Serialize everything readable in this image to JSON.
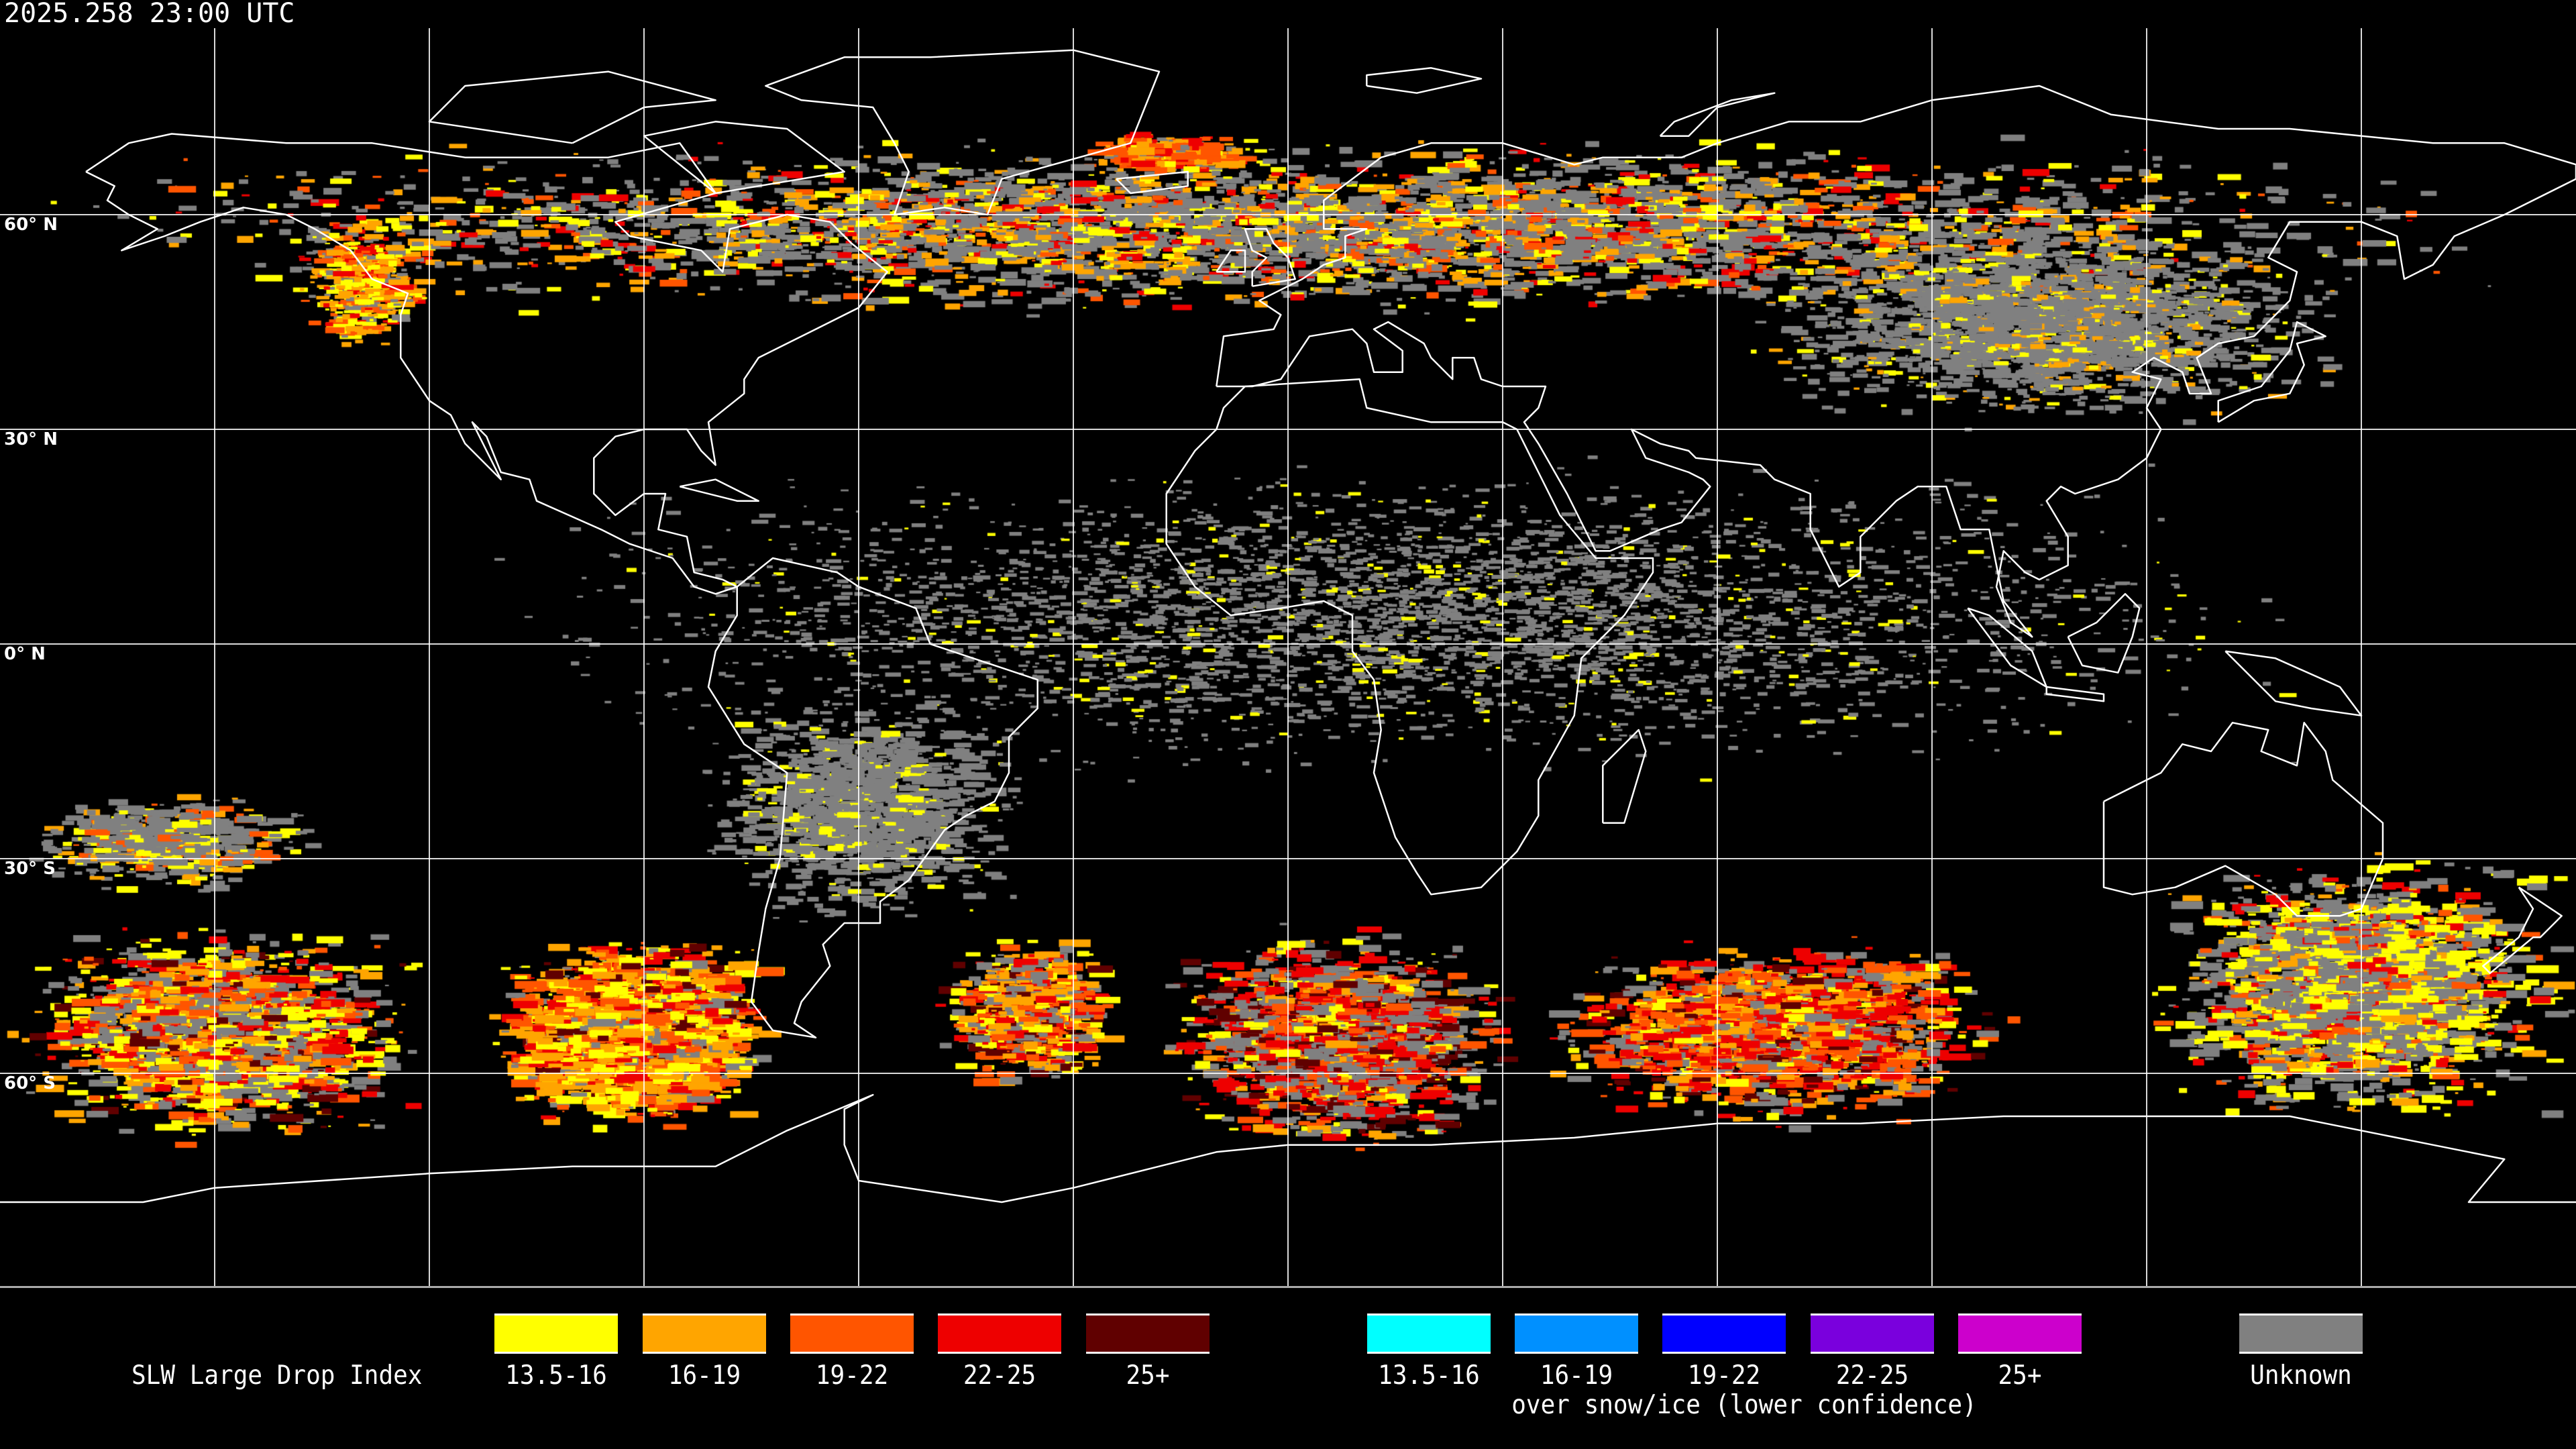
{
  "title": "2025.258 23:00 UTC",
  "latitude_labels": [
    "60° N",
    "30° N",
    "0° N",
    "30° S",
    "60° S"
  ],
  "legend": {
    "title": "SLW Large Drop Index",
    "standard": [
      {
        "label": "13.5-16",
        "color": "#ffff00"
      },
      {
        "label": "16-19",
        "color": "#ffa500"
      },
      {
        "label": "19-22",
        "color": "#ff5500"
      },
      {
        "label": "22-25",
        "color": "#ee0000"
      },
      {
        "label": "25+",
        "color": "#600000"
      }
    ],
    "snow_ice": [
      {
        "label": "13.5-16",
        "color": "#00ffff"
      },
      {
        "label": "16-19",
        "color": "#0090ff"
      },
      {
        "label": "19-22",
        "color": "#0000ff"
      },
      {
        "label": "22-25",
        "color": "#7a00dd"
      },
      {
        "label": "25+",
        "color": "#cc00cc"
      }
    ],
    "snow_ice_caption": "over snow/ice (lower confidence)",
    "unknown": {
      "label": "Unknown",
      "color": "#808080"
    }
  },
  "map": {
    "projection": "equirectangular",
    "lon_range": [
      -180,
      180
    ],
    "lat_range": [
      -90,
      90
    ],
    "grid_spacing_deg": 30,
    "coastline_color": "#ffffff",
    "grid_color": "#ffffff",
    "background": "#000000"
  }
}
